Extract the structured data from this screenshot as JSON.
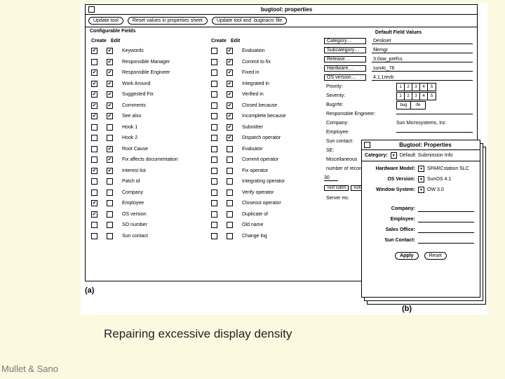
{
  "slide": {
    "caption": "Repairing excessive display density",
    "credit": "Mullet & Sano",
    "label_a": "(a)",
    "label_b": "(b)"
  },
  "panel_a": {
    "title": "bugtool: properties",
    "buttons": {
      "update": "Update tool",
      "reset": "Reset values in properties sheet",
      "update_rc": "Update tool and .bugtracrc file"
    },
    "section_config": "Configurable Fields",
    "col_headers": {
      "create": "Create",
      "edit": "Edit"
    },
    "left_rows": [
      {
        "c": true,
        "e": true,
        "label": "Keywords"
      },
      {
        "c": false,
        "e": true,
        "label": "Responsible Manager"
      },
      {
        "c": true,
        "e": true,
        "label": "Responsible Engineer"
      },
      {
        "c": true,
        "e": true,
        "label": "Work Around"
      },
      {
        "c": true,
        "e": true,
        "label": "Suggested Fix"
      },
      {
        "c": true,
        "e": true,
        "label": "Comments"
      },
      {
        "c": true,
        "e": true,
        "label": "See also"
      },
      {
        "c": false,
        "e": false,
        "label": "Hook 1"
      },
      {
        "c": false,
        "e": false,
        "label": "Hook 2"
      },
      {
        "c": false,
        "e": true,
        "label": "Root Cause"
      },
      {
        "c": false,
        "e": true,
        "label": "Fix affects documentation"
      },
      {
        "c": true,
        "e": true,
        "label": "Interest list"
      },
      {
        "c": false,
        "e": false,
        "label": "Patch id"
      },
      {
        "c": false,
        "e": false,
        "label": "Company"
      },
      {
        "c": true,
        "e": false,
        "label": "Employee"
      },
      {
        "c": true,
        "e": false,
        "label": "OS version"
      },
      {
        "c": false,
        "e": false,
        "label": "SO number"
      },
      {
        "c": false,
        "e": false,
        "label": "Sun contact"
      }
    ],
    "mid_rows": [
      {
        "c": false,
        "e": true,
        "label": "Evaluation"
      },
      {
        "c": false,
        "e": true,
        "label": "Commit to fix"
      },
      {
        "c": false,
        "e": true,
        "label": "Fixed in"
      },
      {
        "c": false,
        "e": true,
        "label": "Integrated in"
      },
      {
        "c": false,
        "e": true,
        "label": "Verified in"
      },
      {
        "c": false,
        "e": true,
        "label": "Closed because"
      },
      {
        "c": false,
        "e": true,
        "label": "Incomplete because"
      },
      {
        "c": false,
        "e": true,
        "label": "Submitter"
      },
      {
        "c": false,
        "e": true,
        "label": "Dispatch operator"
      },
      {
        "c": false,
        "e": false,
        "label": "Evaluator"
      },
      {
        "c": false,
        "e": false,
        "label": "Commit operator"
      },
      {
        "c": false,
        "e": false,
        "label": "Fix operator"
      },
      {
        "c": false,
        "e": false,
        "label": "Integrating operator"
      },
      {
        "c": false,
        "e": false,
        "label": "Verify operator"
      },
      {
        "c": false,
        "e": false,
        "label": "Closeout operator"
      },
      {
        "c": false,
        "e": false,
        "label": "Duplicate of"
      },
      {
        "c": false,
        "e": false,
        "label": "Old name"
      },
      {
        "c": false,
        "e": false,
        "label": "Change log"
      }
    ],
    "right": {
      "header": "Default Field Values",
      "kv": [
        {
          "k": "Category…",
          "v": "Deskset"
        },
        {
          "k": "Subcategory…",
          "v": "filemgr"
        },
        {
          "k": "Release…",
          "v": "3.0ow_prefcs"
        },
        {
          "k": "Hardware…",
          "v": "sun4c_76"
        },
        {
          "k": "OS version…",
          "v": "4.1.1revb"
        }
      ],
      "labels": {
        "priority": "Priority:",
        "severity": "Severity:",
        "bugrfe": "Bug/rfe:",
        "bug": "bug",
        "rfe": "rfe",
        "resp_eng": "Responsible Engineer:",
        "company": "Company:",
        "company_v": "Sun Microsystems, Inc",
        "employee": "Employee:",
        "suncontact": "Sun contact:",
        "se": "SE:",
        "misc": "Miscellaneous",
        "numrec": "number of records:",
        "numrec_v": "30",
        "servermc": "Server mc"
      },
      "mini_btns": [
        "Text subm",
        "Auto upda",
        "Viewwindo",
        "Start in mo",
        "BugTraq s"
      ],
      "prio_cells": [
        "1",
        "2",
        "3",
        "4",
        "5"
      ],
      "sev_cells": [
        "1",
        "2",
        "3",
        "4",
        "5"
      ]
    }
  },
  "panel_b": {
    "title": "Bugtool: Properties",
    "category_label": "Category:",
    "category_value": "Default: Submission Info",
    "rows": [
      {
        "label": "Hardware Model:",
        "value": "SPARCstation SLC",
        "drop": true
      },
      {
        "label": "OS Version:",
        "value": "SunOS 4.1",
        "drop": true
      },
      {
        "label": "Window System:",
        "value": "OW 3.0",
        "drop": true
      }
    ],
    "lines": [
      "Company:",
      "Employee:",
      "Sales Office:",
      "Sun Contact:"
    ],
    "apply": "Apply",
    "reset": "Reset"
  }
}
